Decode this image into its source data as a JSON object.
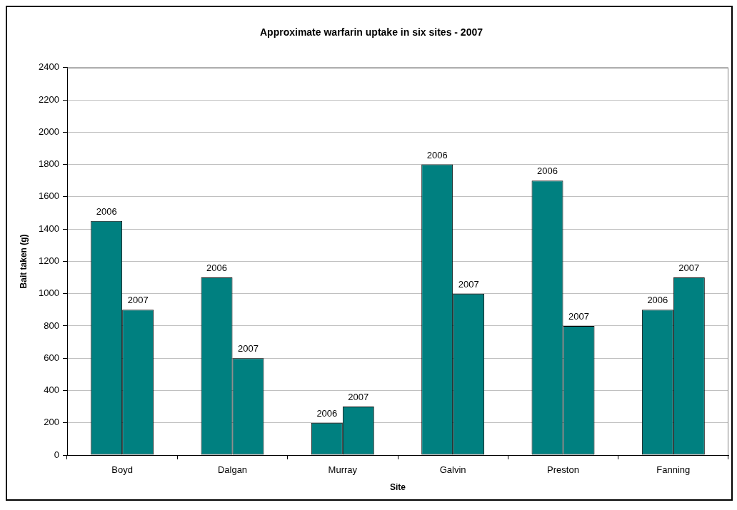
{
  "chart_data": {
    "type": "bar",
    "title": "Approximate warfarin uptake in six sites - 2007",
    "xlabel": "Site",
    "ylabel": "Bait taken (g)",
    "categories": [
      "Boyd",
      "Dalgan",
      "Murray",
      "Galvin",
      "Preston",
      "Fanning"
    ],
    "series": [
      {
        "name": "2006",
        "color": "#008080",
        "values": [
          1450,
          1100,
          200,
          1800,
          1700,
          900
        ]
      },
      {
        "name": "2007",
        "color": "#008080",
        "values": [
          900,
          600,
          300,
          1000,
          800,
          1100
        ]
      }
    ],
    "ylim": [
      0,
      2400
    ],
    "yticks": [
      0,
      200,
      400,
      600,
      800,
      1000,
      1200,
      1400,
      1600,
      1800,
      2000,
      2200,
      2400
    ],
    "grid": "y",
    "legend": false
  }
}
